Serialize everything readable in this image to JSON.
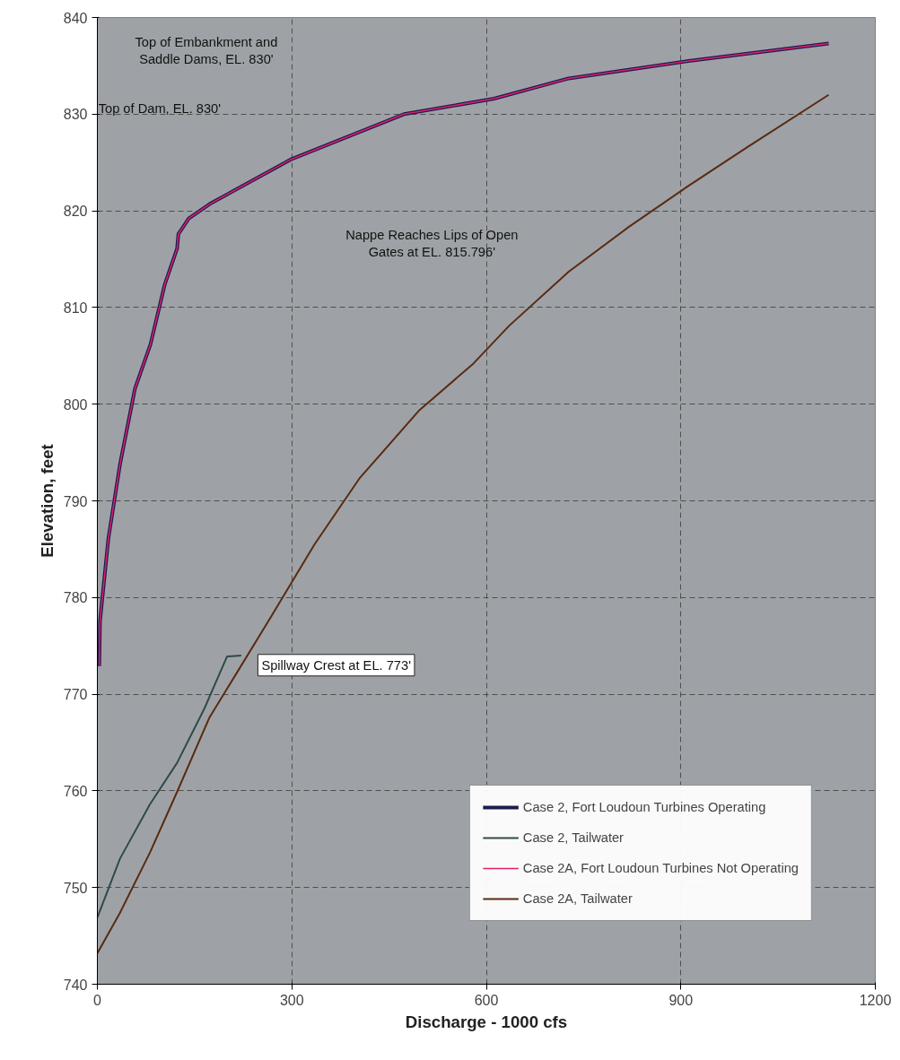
{
  "chart_data": {
    "type": "line",
    "xlabel": "Discharge - 1000 cfs",
    "ylabel": "Elevation, feet",
    "xlim": [
      0,
      1200
    ],
    "xticks": [
      0,
      300,
      600,
      900,
      1200
    ],
    "ylim": [
      740,
      840
    ],
    "yticks": [
      740,
      750,
      760,
      770,
      780,
      790,
      800,
      810,
      820,
      830,
      840
    ],
    "grid": true,
    "legend": "bottom right",
    "line_style": "solid",
    "marker": "none",
    "series": [
      {
        "name": "Case 2, Fort Loudoun Turbines Operating",
        "color": "#1c1c50",
        "x": [
          3,
          4,
          17,
          35,
          58,
          82,
          104,
          123,
          125,
          141,
          173,
          298,
          473,
          612,
          727,
          912,
          1128
        ],
        "values": [
          772.9,
          777.5,
          786.1,
          793.8,
          801.6,
          806.2,
          812.4,
          816.1,
          817.6,
          819.2,
          820.7,
          825.3,
          830.0,
          831.6,
          833.7,
          835.5,
          837.3
        ]
      },
      {
        "name": "Case 2, Tailwater",
        "color": "#2f4a48",
        "x": [
          0,
          35,
          81,
          123,
          165,
          200,
          222
        ],
        "values": [
          746.9,
          753.0,
          758.6,
          762.9,
          768.5,
          773.9,
          774.0
        ]
      },
      {
        "name": "Case 2A, Fort Loudoun Turbines Not Operating",
        "color": "#e0206a",
        "x": [
          3,
          4,
          17,
          35,
          58,
          82,
          104,
          123,
          125,
          141,
          173,
          298,
          473,
          612,
          727,
          912,
          1128
        ],
        "values": [
          772.9,
          777.5,
          786.1,
          793.8,
          801.6,
          806.2,
          812.4,
          816.1,
          817.6,
          819.2,
          820.7,
          825.3,
          830.0,
          831.6,
          833.7,
          835.5,
          837.3
        ]
      },
      {
        "name": "Case 2A, Tailwater",
        "color": "#5a2a10",
        "x": [
          0,
          35,
          81,
          123,
          173,
          215,
          266,
          335,
          404,
          497,
          580,
          635,
          727,
          819,
          912,
          1003,
          1128
        ],
        "values": [
          743.2,
          747.4,
          753.6,
          759.9,
          767.6,
          772.2,
          777.8,
          785.5,
          792.3,
          799.4,
          804.2,
          808.1,
          813.7,
          818.3,
          822.6,
          826.6,
          832.0
        ]
      }
    ],
    "annotations": [
      "Top of Embankment and\nSaddle Dams, EL. 830'",
      "Top of Dam, EL. 830'",
      "Nappe Reaches Lips of Open\nGates at EL. 815.796'",
      "Spillway Crest at EL. 773'"
    ]
  }
}
